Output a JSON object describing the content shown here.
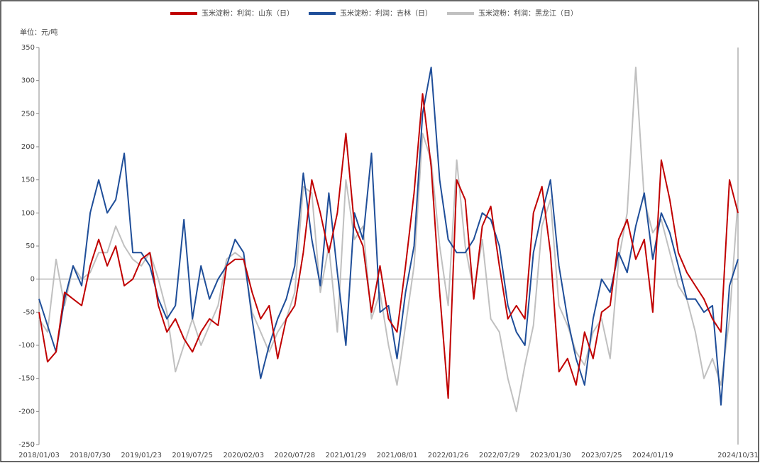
{
  "chart_data": {
    "type": "line",
    "unit_label": "单位：元/吨",
    "categories": [
      "2018/01/03",
      null,
      null,
      null,
      null,
      null,
      "2018/07/30",
      null,
      null,
      null,
      null,
      null,
      "2019/01/23",
      null,
      null,
      null,
      null,
      null,
      "2019/07/25",
      null,
      null,
      null,
      null,
      null,
      "2020/02/03",
      null,
      null,
      null,
      null,
      null,
      "2020/07/28",
      null,
      null,
      null,
      null,
      null,
      "2021/01/29",
      null,
      null,
      null,
      null,
      null,
      "2021/08/01",
      null,
      null,
      null,
      null,
      null,
      "2022/01/26",
      null,
      null,
      null,
      null,
      null,
      "2022/07/29",
      null,
      null,
      null,
      null,
      null,
      "2023/01/30",
      null,
      null,
      null,
      null,
      null,
      "2023/07/25",
      null,
      null,
      null,
      null,
      null,
      "2024/01/19",
      null,
      null,
      null,
      null,
      null,
      null,
      null,
      null,
      null,
      "2024/10/31"
    ],
    "series": [
      {
        "name": "玉米淀粉：利润：山东（日）",
        "color": "#c00000",
        "values": [
          -50,
          -125,
          -110,
          -20,
          -30,
          -40,
          20,
          60,
          20,
          50,
          -10,
          0,
          30,
          40,
          -40,
          -80,
          -60,
          -90,
          -110,
          -80,
          -60,
          -70,
          20,
          30,
          30,
          -20,
          -60,
          -40,
          -120,
          -60,
          -40,
          40,
          150,
          100,
          40,
          100,
          220,
          80,
          50,
          -50,
          20,
          -60,
          -80,
          20,
          130,
          280,
          170,
          -20,
          -180,
          150,
          120,
          -30,
          80,
          110,
          20,
          -60,
          -40,
          -60,
          100,
          140,
          40,
          -140,
          -120,
          -160,
          -80,
          -120,
          -50,
          -40,
          60,
          90,
          30,
          60,
          -50,
          180,
          120,
          40,
          10,
          -10,
          -30,
          -60,
          -80,
          150,
          100
        ]
      },
      {
        "name": "玉米淀粉：利润：吉林（日）",
        "color": "#1f4e99",
        "values": [
          -30,
          -70,
          -110,
          -30,
          20,
          -10,
          100,
          150,
          100,
          120,
          190,
          40,
          40,
          20,
          -30,
          -60,
          -40,
          90,
          -60,
          20,
          -30,
          0,
          20,
          60,
          40,
          -60,
          -150,
          -100,
          -60,
          -30,
          20,
          160,
          60,
          -10,
          130,
          10,
          -100,
          100,
          60,
          190,
          -50,
          -40,
          -120,
          -20,
          50,
          250,
          320,
          150,
          60,
          40,
          40,
          60,
          100,
          90,
          50,
          -40,
          -80,
          -100,
          40,
          100,
          150,
          20,
          -60,
          -120,
          -160,
          -60,
          0,
          -20,
          40,
          10,
          80,
          130,
          30,
          100,
          70,
          20,
          -30,
          -30,
          -50,
          -40,
          -190,
          -10,
          30
        ]
      },
      {
        "name": "玉米淀粉：利润：黑龙江（日）",
        "color": "#c0c0c0",
        "values": [
          -60,
          -80,
          30,
          -40,
          20,
          0,
          10,
          40,
          40,
          80,
          50,
          30,
          20,
          40,
          0,
          -50,
          -140,
          -100,
          -60,
          -100,
          -70,
          -40,
          30,
          40,
          30,
          -50,
          -80,
          -110,
          -80,
          -60,
          -20,
          140,
          130,
          -20,
          50,
          -80,
          150,
          60,
          80,
          -60,
          -20,
          -100,
          -160,
          -70,
          20,
          220,
          180,
          50,
          -40,
          180,
          50,
          -20,
          60,
          -60,
          -80,
          -150,
          -200,
          -130,
          -70,
          80,
          120,
          -40,
          -70,
          -110,
          -130,
          -80,
          -60,
          -120,
          30,
          100,
          320,
          120,
          70,
          90,
          40,
          -10,
          -30,
          -80,
          -150,
          -120,
          -160,
          -60,
          120
        ]
      }
    ],
    "ylim": [
      -250,
      350
    ],
    "yticks": [
      -250,
      -200,
      -150,
      -100,
      -50,
      0,
      50,
      100,
      150,
      200,
      250,
      300,
      350
    ],
    "legend": "top"
  }
}
